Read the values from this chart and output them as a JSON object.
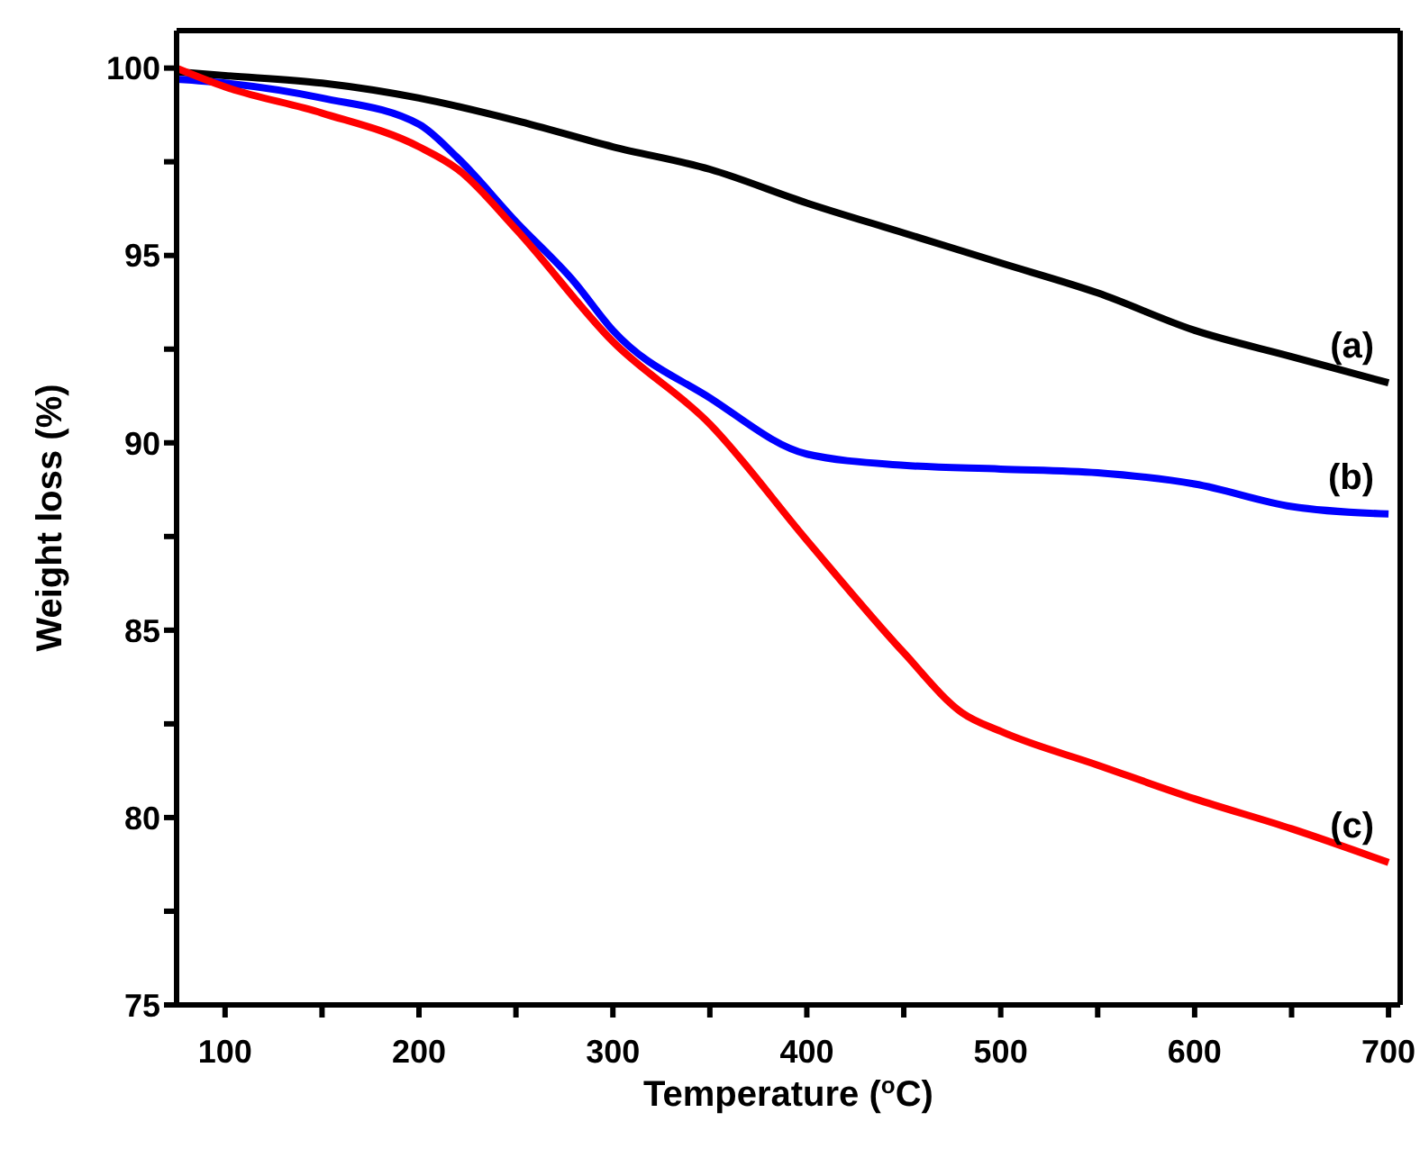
{
  "chart_data": {
    "type": "line",
    "xlabel": "Temperature ($^{o}$C)",
    "ylabel": "Weight loss (%)",
    "xlim": [
      75,
      706
    ],
    "ylim": [
      75,
      101
    ],
    "xticks": [
      100,
      {
        "value": 150,
        "label": null
      },
      200,
      {
        "value": 250,
        "label": null
      },
      300,
      {
        "value": 350,
        "label": null
      },
      400,
      {
        "value": 450,
        "label": null
      },
      500,
      {
        "value": 550,
        "label": null
      },
      600,
      {
        "value": 650,
        "label": null
      },
      700
    ],
    "yticks": [
      75,
      {
        "value": 77.5,
        "label": null
      },
      80,
      {
        "value": 82.5,
        "label": null
      },
      85,
      {
        "value": 87.5,
        "label": null
      },
      90,
      {
        "value": 92.5,
        "label": null
      },
      95,
      {
        "value": 97.5,
        "label": null
      },
      100
    ],
    "marker": "none",
    "line_style": "solid",
    "series": [
      {
        "name": "(a)",
        "color": "#000000",
        "x": [
          75,
          100,
          150,
          200,
          250,
          300,
          350,
          400,
          450,
          500,
          550,
          600,
          650,
          700
        ],
        "values": [
          99.9,
          99.8,
          99.6,
          99.2,
          98.6,
          97.9,
          97.3,
          96.4,
          95.6,
          94.8,
          94.0,
          93.0,
          92.3,
          91.6
        ]
      },
      {
        "name": "(b)",
        "color": "#0000ff",
        "x": [
          75,
          100,
          150,
          200,
          220,
          250,
          280,
          300,
          350,
          400,
          450,
          500,
          550,
          600,
          650,
          700
        ],
        "values": [
          99.7,
          99.6,
          99.2,
          98.5,
          97.6,
          95.9,
          94.3,
          93.0,
          91.2,
          89.7,
          89.4,
          89.3,
          89.2,
          88.9,
          88.3,
          88.1
        ]
      },
      {
        "name": "(c)",
        "color": "#ff0000",
        "x": [
          75,
          100,
          150,
          200,
          220,
          250,
          300,
          350,
          400,
          450,
          480,
          500,
          550,
          600,
          650,
          700
        ],
        "values": [
          100,
          99.5,
          98.8,
          97.9,
          97.3,
          95.7,
          92.7,
          90.5,
          87.4,
          84.4,
          82.8,
          82.3,
          81.4,
          80.5,
          79.7,
          78.8
        ]
      }
    ]
  }
}
